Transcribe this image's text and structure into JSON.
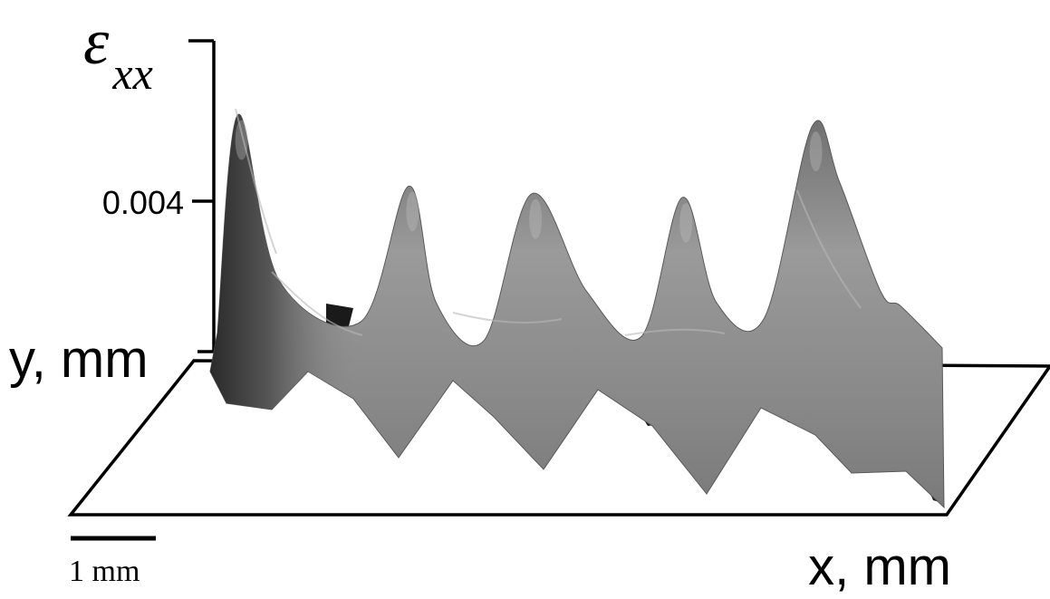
{
  "chart_data": {
    "type": "surface3d",
    "title": "",
    "zlabel": "εxx",
    "zlabel_symbol": "ε",
    "zlabel_subscript": "xx",
    "ylabel": "y, mm",
    "xlabel": "x, mm",
    "z_ticks": [
      "0.004"
    ],
    "zlim": [
      0,
      0.0065
    ],
    "scale_bar_label": "1 mm",
    "scale_bar_length_mm": 1,
    "x_range_mm": [
      0,
      10.6
    ],
    "ridge_profile": {
      "x_mm": [
        0.0,
        0.3,
        0.9,
        2.1,
        2.8,
        3.2,
        3.9,
        4.6,
        5.4,
        6.2,
        6.8,
        7.3,
        8.0,
        8.7,
        9.1,
        9.7,
        10.0,
        10.6
      ],
      "z": [
        0.0005,
        0.0063,
        0.0019,
        0.0008,
        0.0044,
        0.0013,
        0.0003,
        0.0042,
        0.0016,
        0.0004,
        0.0041,
        0.0013,
        0.0009,
        0.006,
        0.0045,
        0.0016,
        0.0012,
        0.0001
      ]
    },
    "peaks": [
      {
        "x_mm": 0.3,
        "z": 0.0063
      },
      {
        "x_mm": 2.8,
        "z": 0.0044
      },
      {
        "x_mm": 4.6,
        "z": 0.0042
      },
      {
        "x_mm": 6.8,
        "z": 0.0041
      },
      {
        "x_mm": 8.7,
        "z": 0.006
      }
    ],
    "valleys": [
      {
        "x_mm": 2.1,
        "z": 0.0008
      },
      {
        "x_mm": 3.9,
        "z": 0.0003
      },
      {
        "x_mm": 6.2,
        "z": 0.0004
      },
      {
        "x_mm": 8.0,
        "z": 0.0009
      }
    ],
    "surface_color": "#8a8a8a",
    "shadow_color": "#1a1a1a",
    "highlight_color": "#c4c4c4",
    "grid": false,
    "legend": "none"
  }
}
